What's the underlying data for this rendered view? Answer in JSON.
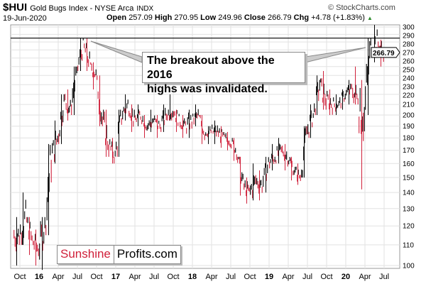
{
  "header": {
    "symbol": "$HUI",
    "name": "Gold Bugs Index - NYSE Arca",
    "exchange": "INDX",
    "date": "19-Jun-2020",
    "watermark": "© StockCharts.com",
    "open_label": "Open",
    "open": "257.09",
    "high_label": "High",
    "high": "270.95",
    "low_label": "Low",
    "low": "249.96",
    "close_label": "Close",
    "close": "266.79",
    "chg_label": "Chg",
    "chg": "+4.78 (+1.83%)",
    "chg_arrow": "▲"
  },
  "annotation": {
    "line1": "The breakout above the 2016",
    "line2": "highs was invalidated."
  },
  "logo": {
    "part1": "Sunshine",
    "part2": "Profits.com",
    "color1": "#d0203a"
  },
  "chart_data": {
    "type": "ohlc",
    "scale": "log",
    "ylim": [
      100,
      300
    ],
    "grid": true,
    "yticks": [
      100,
      110,
      120,
      130,
      140,
      150,
      160,
      170,
      180,
      190,
      200,
      210,
      220,
      230,
      240,
      250,
      260,
      270,
      280,
      290,
      300
    ],
    "xticks": [
      "Oct",
      "16",
      "Apr",
      "Jul",
      "Oct",
      "17",
      "Apr",
      "Jul",
      "Oct",
      "18",
      "Apr",
      "Jul",
      "Oct",
      "19",
      "Apr",
      "Jul",
      "Oct",
      "20",
      "Apr",
      "Jul"
    ],
    "last_price_label": "266.79",
    "resistance_level": 285,
    "up_color": "#000000",
    "down_color": "#d0203a",
    "months": [
      "2015-09",
      "2015-10",
      "2015-11",
      "2015-12",
      "2016-01",
      "2016-02",
      "2016-03",
      "2016-04",
      "2016-05",
      "2016-06",
      "2016-07",
      "2016-08",
      "2016-09",
      "2016-10",
      "2016-11",
      "2016-12",
      "2017-01",
      "2017-02",
      "2017-03",
      "2017-04",
      "2017-05",
      "2017-06",
      "2017-07",
      "2017-08",
      "2017-09",
      "2017-10",
      "2017-11",
      "2017-12",
      "2018-01",
      "2018-02",
      "2018-03",
      "2018-04",
      "2018-05",
      "2018-06",
      "2018-07",
      "2018-08",
      "2018-09",
      "2018-10",
      "2018-11",
      "2018-12",
      "2019-01",
      "2019-02",
      "2019-03",
      "2019-04",
      "2019-05",
      "2019-06",
      "2019-07",
      "2019-08",
      "2019-09",
      "2019-10",
      "2019-11",
      "2019-12",
      "2020-01",
      "2020-02",
      "2020-03",
      "2020-04",
      "2020-05",
      "2020-06"
    ],
    "close": [
      115,
      125,
      112,
      108,
      120,
      165,
      180,
      215,
      205,
      245,
      275,
      255,
      240,
      195,
      175,
      165,
      200,
      210,
      195,
      200,
      190,
      195,
      190,
      200,
      205,
      195,
      190,
      195,
      200,
      185,
      185,
      185,
      180,
      178,
      170,
      145,
      140,
      148,
      145,
      160,
      165,
      170,
      165,
      155,
      150,
      185,
      200,
      230,
      215,
      210,
      210,
      220,
      225,
      215,
      200,
      275,
      280,
      266.79
    ],
    "high": [
      125,
      140,
      125,
      118,
      125,
      175,
      195,
      220,
      225,
      250,
      285,
      285,
      255,
      240,
      205,
      180,
      205,
      220,
      210,
      210,
      200,
      205,
      200,
      210,
      220,
      205,
      200,
      205,
      210,
      200,
      190,
      195,
      190,
      185,
      180,
      165,
      150,
      160,
      155,
      165,
      175,
      180,
      175,
      165,
      160,
      190,
      210,
      240,
      245,
      225,
      220,
      225,
      235,
      250,
      235,
      285,
      303,
      283
    ],
    "low": [
      100,
      110,
      105,
      100,
      98,
      115,
      160,
      175,
      195,
      200,
      245,
      245,
      225,
      190,
      165,
      160,
      165,
      195,
      185,
      190,
      180,
      185,
      180,
      185,
      195,
      185,
      180,
      180,
      190,
      175,
      175,
      175,
      172,
      170,
      162,
      138,
      133,
      135,
      135,
      140,
      155,
      160,
      155,
      148,
      145,
      150,
      180,
      200,
      205,
      200,
      200,
      205,
      210,
      210,
      142,
      200,
      255,
      250
    ]
  }
}
